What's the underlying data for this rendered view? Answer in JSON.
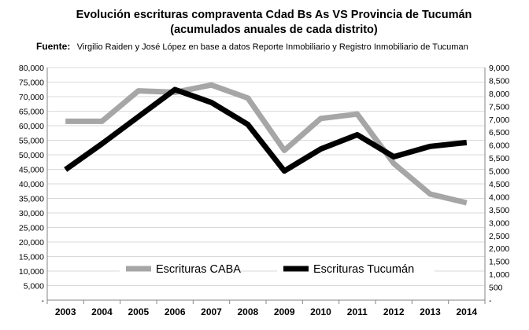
{
  "chart_data": {
    "type": "line",
    "title": "Evolución escrituras compraventa Cdad Bs As VS Provincia de Tucumán",
    "subtitle": "(acumulados anuales de cada distrito)",
    "source_label": "Fuente:",
    "source_text": "Virgilio Raiden y  José López en base a datos Reporte Inmobiliario y Registro Inmobiliario de Tucuman",
    "categories": [
      "2003",
      "2004",
      "2005",
      "2006",
      "2007",
      "2008",
      "2009",
      "2010",
      "2011",
      "2012",
      "2013",
      "2014"
    ],
    "y_left": {
      "ylim": [
        0,
        80000
      ],
      "ticks": [
        "-",
        "5,000",
        "10,000",
        "15,000",
        "20,000",
        "25,000",
        "30,000",
        "35,000",
        "40,000",
        "45,000",
        "50,000",
        "55,000",
        "60,000",
        "65,000",
        "70,000",
        "75,000",
        "80,000"
      ]
    },
    "y_right": {
      "ylim": [
        0,
        9000
      ],
      "ticks": [
        "-",
        "500",
        "1,000",
        "1,500",
        "2,000",
        "2,500",
        "3,000",
        "3,500",
        "4,000",
        "4,500",
        "5,000",
        "5,500",
        "6,000",
        "6,500",
        "7,000",
        "7,500",
        "8,000",
        "8,500",
        "9,000"
      ]
    },
    "grid": true,
    "legend_placement": "bottom",
    "series": [
      {
        "name": "Escrituras CABA",
        "axis": "left",
        "color": "#a6a6a6",
        "values": [
          61500,
          61500,
          72000,
          71500,
          74000,
          69500,
          51500,
          62500,
          64000,
          47000,
          36500,
          33500
        ]
      },
      {
        "name": "Escrituras Tucumán",
        "axis": "right",
        "color": "#000000",
        "values": [
          5050,
          6050,
          7100,
          8150,
          7650,
          6800,
          5000,
          5850,
          6400,
          5550,
          5950,
          6100
        ]
      }
    ]
  }
}
